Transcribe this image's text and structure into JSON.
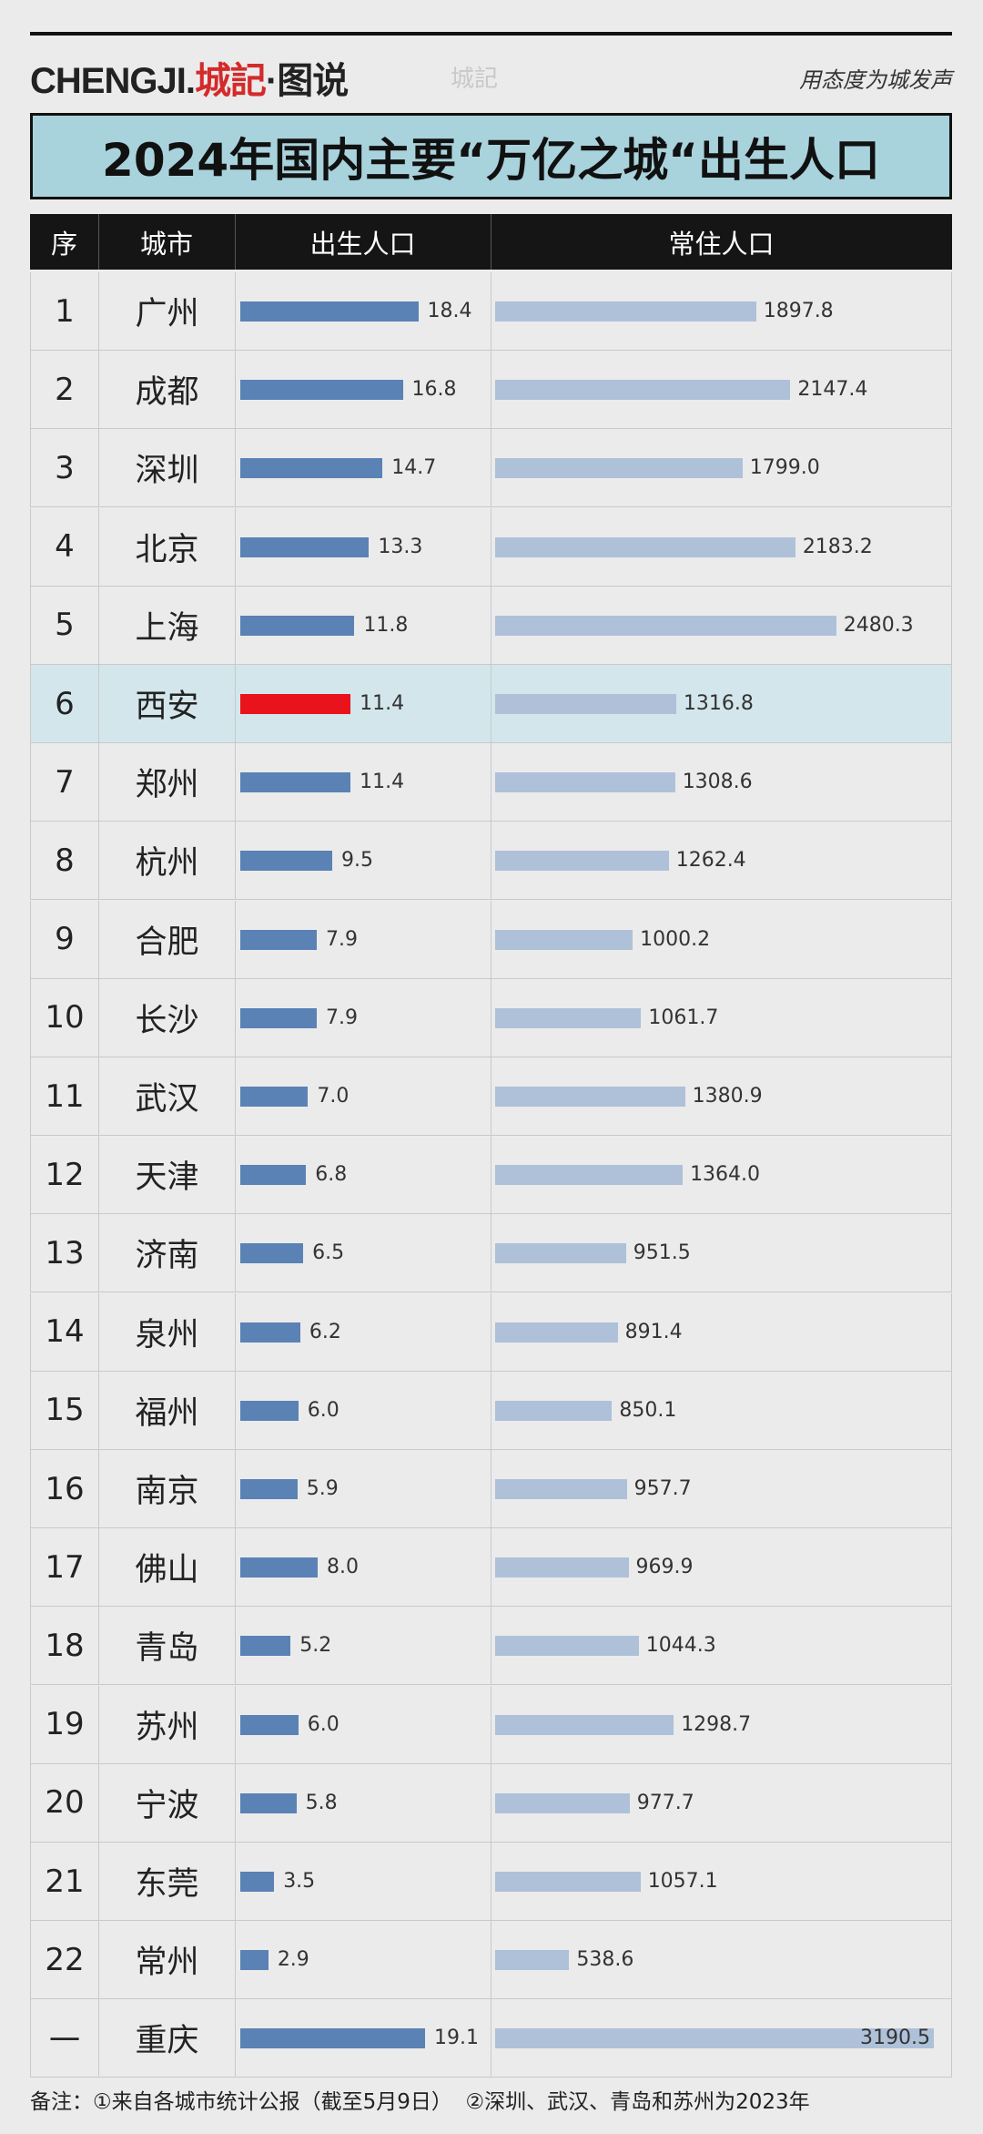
{
  "header": {
    "logo": "CHENGJI.",
    "logo_cn": "城記",
    "logo_suffix": "·图说",
    "watermark": "城記",
    "slogan": "用态度为城发声"
  },
  "title": "2024年国内主要“万亿之城“出生人口",
  "columns": [
    "序",
    "城市",
    "出生人口",
    "常住人口"
  ],
  "colors": {
    "births": "#5a82b5",
    "population": "#aec1d9",
    "highlight_bar": "#e8131b",
    "highlight_row": "#d3e6ec"
  },
  "rows": [
    {
      "rank": 1,
      "city": "广州",
      "births": 18.4,
      "population": 1897.8
    },
    {
      "rank": 2,
      "city": "成都",
      "births": 16.8,
      "population": 2147.4
    },
    {
      "rank": 3,
      "city": "深圳",
      "births": 14.7,
      "population": 1799.0,
      "population_label": "1799.0"
    },
    {
      "rank": 4,
      "city": "北京",
      "births": 13.3,
      "population": 2183.2
    },
    {
      "rank": 5,
      "city": "上海",
      "births": 11.8,
      "population": 2480.3
    },
    {
      "rank": 6,
      "city": "西安",
      "births": 11.4,
      "population": 1316.8,
      "highlighted": true
    },
    {
      "rank": 7,
      "city": "郑州",
      "births": 11.4,
      "population": 1308.6
    },
    {
      "rank": 8,
      "city": "杭州",
      "births": 9.5,
      "population": 1262.4
    },
    {
      "rank": 9,
      "city": "合肥",
      "births": 7.9,
      "population": 1000.2
    },
    {
      "rank": 10,
      "city": "长沙",
      "births": 7.9,
      "population": 1061.7
    },
    {
      "rank": 11,
      "city": "武汉",
      "births": 7.0,
      "births_label": "7.0",
      "population": 1380.9
    },
    {
      "rank": 12,
      "city": "天津",
      "births": 6.8,
      "population": 1364.0,
      "population_label": "1364.0"
    },
    {
      "rank": 13,
      "city": "济南",
      "births": 6.5,
      "population": 951.5
    },
    {
      "rank": 14,
      "city": "泉州",
      "births": 6.2,
      "population": 891.4
    },
    {
      "rank": 15,
      "city": "福州",
      "births": 6.0,
      "births_label": "6.0",
      "population": 850.1
    },
    {
      "rank": 16,
      "city": "南京",
      "births": 5.9,
      "population": 957.7
    },
    {
      "rank": 17,
      "city": "佛山",
      "births": 8.0,
      "births_label": "8.0",
      "population": 969.9
    },
    {
      "rank": 18,
      "city": "青岛",
      "births": 5.2,
      "population": 1044.3
    },
    {
      "rank": 19,
      "city": "苏州",
      "births": 6.0,
      "births_label": "6.0",
      "population": 1298.7
    },
    {
      "rank": 20,
      "city": "宁波",
      "births": 5.8,
      "population": 977.7
    },
    {
      "rank": 21,
      "city": "东莞",
      "births": 3.5,
      "population": 1057.1
    },
    {
      "rank": 22,
      "city": "常州",
      "births": 2.9,
      "population": 538.6
    },
    {
      "rank": "一",
      "city": "重庆",
      "births": 19.1,
      "population": 3190.5
    }
  ],
  "footer": {
    "label": "备注：",
    "note1": "①来自各城市统计公报（截至5月9日）",
    "note2": "②深圳、武汉、青岛和苏州为2023年"
  }
}
